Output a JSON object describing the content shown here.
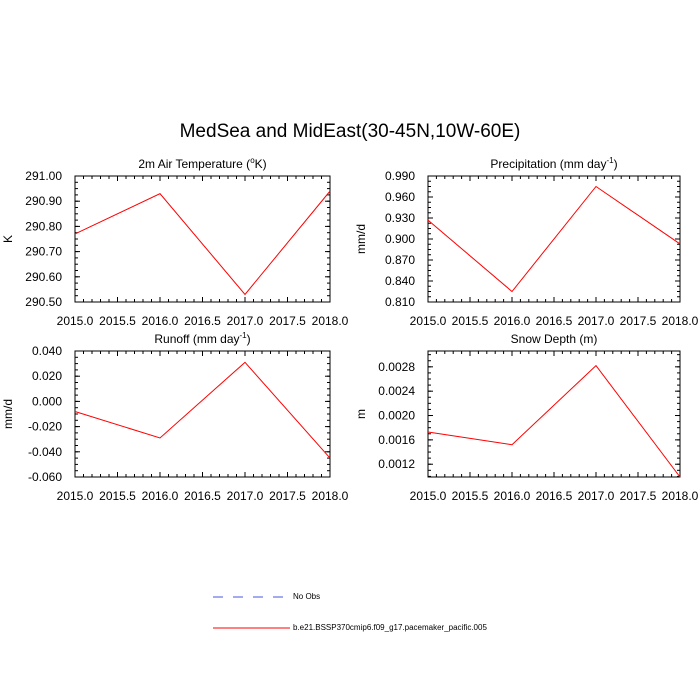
{
  "title": "MedSea and MidEast(30-45N,10W-60E)",
  "legend": [
    {
      "label": "No Obs",
      "color": "#4a55e0",
      "dash": true
    },
    {
      "label": "b.e21.BSSP370cmip6.f09_g17.pacemaker_pacific.005",
      "color": "#ff0000",
      "dash": false
    }
  ],
  "chart_data": [
    {
      "type": "line",
      "title_parts": [
        "2m Air Temperature (",
        "o",
        "K)"
      ],
      "ylabel": "K",
      "x": [
        2015.0,
        2016.0,
        2017.0,
        2018.0
      ],
      "xlim": [
        2015.0,
        2018.0
      ],
      "xticks": [
        "2015.0",
        "2015.5",
        "2016.0",
        "2016.5",
        "2017.0",
        "2017.5",
        "2018.0"
      ],
      "ylim": [
        290.5,
        291.0
      ],
      "yticks": [
        "291.00",
        "290.90",
        "290.80",
        "290.70",
        "290.60",
        "290.50"
      ],
      "ytick_values": [
        291.0,
        290.9,
        290.8,
        290.7,
        290.6,
        290.5
      ],
      "series": [
        {
          "values": [
            290.77,
            290.93,
            290.53,
            290.94
          ],
          "color": "#ff0000"
        }
      ]
    },
    {
      "type": "line",
      "title_parts": [
        "Precipitation (mm day",
        "-1",
        ")"
      ],
      "ylabel": "mm/d",
      "x": [
        2015.0,
        2016.0,
        2017.0,
        2018.0
      ],
      "xlim": [
        2015.0,
        2018.0
      ],
      "xticks": [
        "2015.0",
        "2015.5",
        "2016.0",
        "2016.5",
        "2017.0",
        "2017.5",
        "2018.0"
      ],
      "ylim": [
        0.81,
        0.99
      ],
      "yticks": [
        "0.990",
        "0.960",
        "0.930",
        "0.900",
        "0.870",
        "0.840",
        "0.810"
      ],
      "ytick_values": [
        0.99,
        0.96,
        0.93,
        0.9,
        0.87,
        0.84,
        0.81
      ],
      "series": [
        {
          "values": [
            0.927,
            0.825,
            0.975,
            0.893
          ],
          "color": "#ff0000"
        }
      ]
    },
    {
      "type": "line",
      "title_parts": [
        "Runoff (mm day",
        "-1",
        ")"
      ],
      "ylabel": "mm/d",
      "x": [
        2015.0,
        2016.0,
        2017.0,
        2018.0
      ],
      "xlim": [
        2015.0,
        2018.0
      ],
      "xticks": [
        "2015.0",
        "2015.5",
        "2016.0",
        "2016.5",
        "2017.0",
        "2017.5",
        "2018.0"
      ],
      "ylim": [
        -0.06,
        0.04
      ],
      "yticks": [
        "0.040",
        "0.020",
        "0.000",
        "-0.020",
        "-0.040",
        "-0.060"
      ],
      "ytick_values": [
        0.04,
        0.02,
        0.0,
        -0.02,
        -0.04,
        -0.06
      ],
      "series": [
        {
          "values": [
            -0.008,
            -0.029,
            0.031,
            -0.045
          ],
          "color": "#ff0000"
        }
      ]
    },
    {
      "type": "line",
      "title_parts": [
        "Snow Depth (m)"
      ],
      "ylabel": "m",
      "x": [
        2015.0,
        2016.0,
        2017.0,
        2018.0
      ],
      "xlim": [
        2015.0,
        2018.0
      ],
      "xticks": [
        "2015.0",
        "2015.5",
        "2016.0",
        "2016.5",
        "2017.0",
        "2017.5",
        "2018.0"
      ],
      "ylim": [
        0.00099,
        0.00306
      ],
      "yticks": [
        "0.0028",
        "0.0024",
        "0.0020",
        "0.0016",
        "0.0012"
      ],
      "ytick_values": [
        0.0028,
        0.0024,
        0.002,
        0.0016,
        0.0012
      ],
      "series": [
        {
          "values": [
            0.00173,
            0.00152,
            0.00282,
            0.00099
          ],
          "color": "#ff0000"
        }
      ]
    }
  ]
}
